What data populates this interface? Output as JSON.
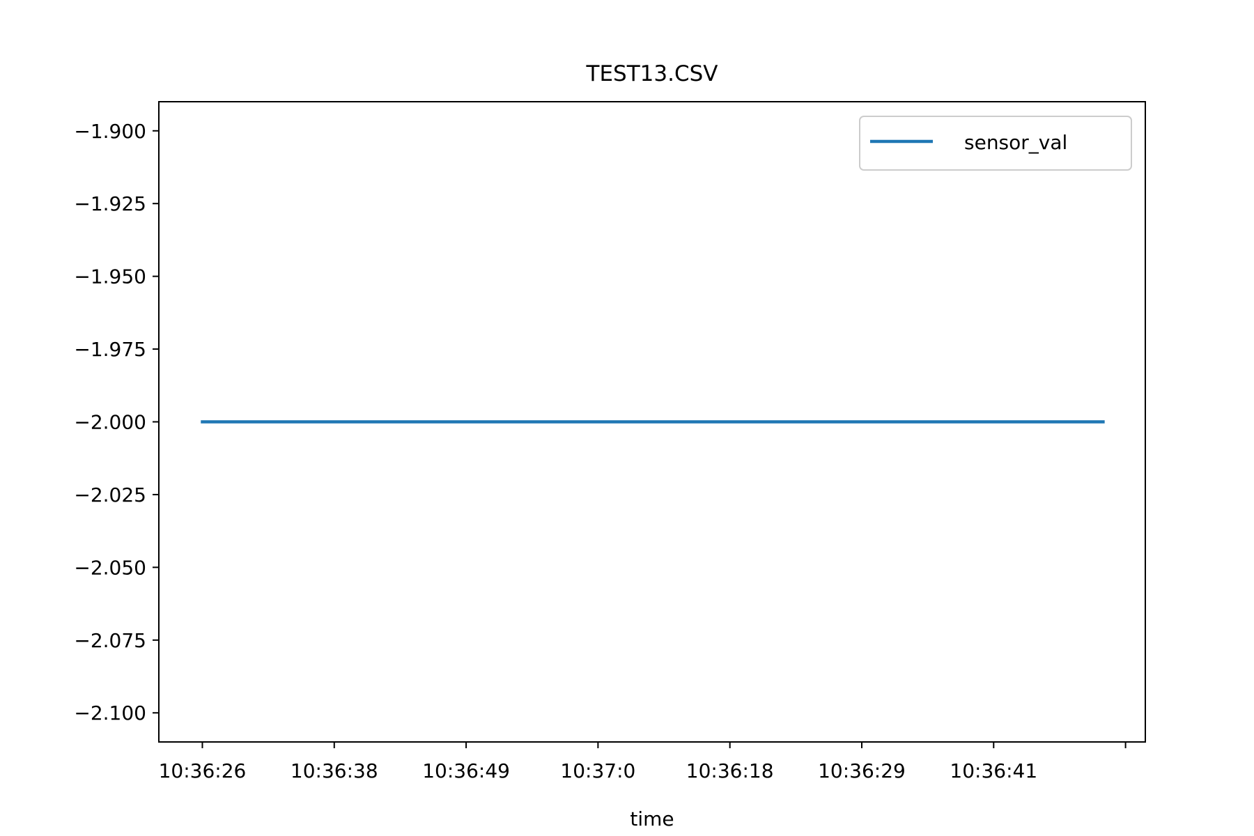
{
  "chart_data": {
    "type": "line",
    "title": "TEST13.CSV",
    "xlabel": "time",
    "ylabel": "",
    "x_tick_labels": [
      "10:36:26",
      "10:36:38",
      "10:36:49",
      "10:37:0",
      "10:36:18",
      "10:36:29",
      "10:36:41",
      ""
    ],
    "y_ticks": [
      -1.9,
      -1.925,
      -1.95,
      -1.975,
      -2.0,
      -2.025,
      -2.05,
      -2.075,
      -2.1
    ],
    "y_tick_labels": [
      "−1.900",
      "−1.925",
      "−1.950",
      "−1.975",
      "−2.000",
      "−2.025",
      "−2.050",
      "−2.075",
      "−2.100"
    ],
    "ylim": [
      -2.11,
      -1.89
    ],
    "xlim": [
      -0.33,
      7.15
    ],
    "series": [
      {
        "name": "sensor_val",
        "color": "#1f77b4",
        "x": [
          0,
          6.83
        ],
        "y": [
          -2.0,
          -2.0
        ]
      }
    ],
    "grid": false,
    "legend": "top-right"
  }
}
